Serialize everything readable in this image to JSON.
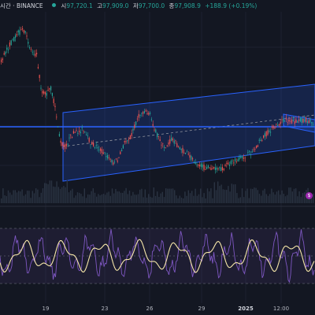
{
  "header": {
    "symbol_text": "시간 · BINANCE",
    "open_label": "시",
    "open_value": "97,720.1",
    "high_label": "고",
    "high_value": "97,909.0",
    "low_label": "저",
    "low_value": "97,700.0",
    "close_label": "종",
    "close_value": "97,908.9",
    "change": "+188.9 (+0.19%)",
    "status_color": "#26a69a"
  },
  "x_axis": [
    {
      "label": "19",
      "bold": false
    },
    {
      "label": "23",
      "bold": false
    },
    {
      "label": "26",
      "bold": false
    },
    {
      "label": "29",
      "bold": false
    },
    {
      "label": "2025",
      "bold": true
    },
    {
      "label": "12:00",
      "bold": false
    }
  ],
  "colors": {
    "background": "#131722",
    "up": "#26a69a",
    "down": "#ef5350",
    "channel_line": "#2962ff",
    "horizontal_line": "#2962ff",
    "oscillator_fast": "#7e57c2",
    "oscillator_slow": "#f5e6a8",
    "volume": "#2a3342"
  },
  "alert_icon": "dollar-alert-icon"
}
